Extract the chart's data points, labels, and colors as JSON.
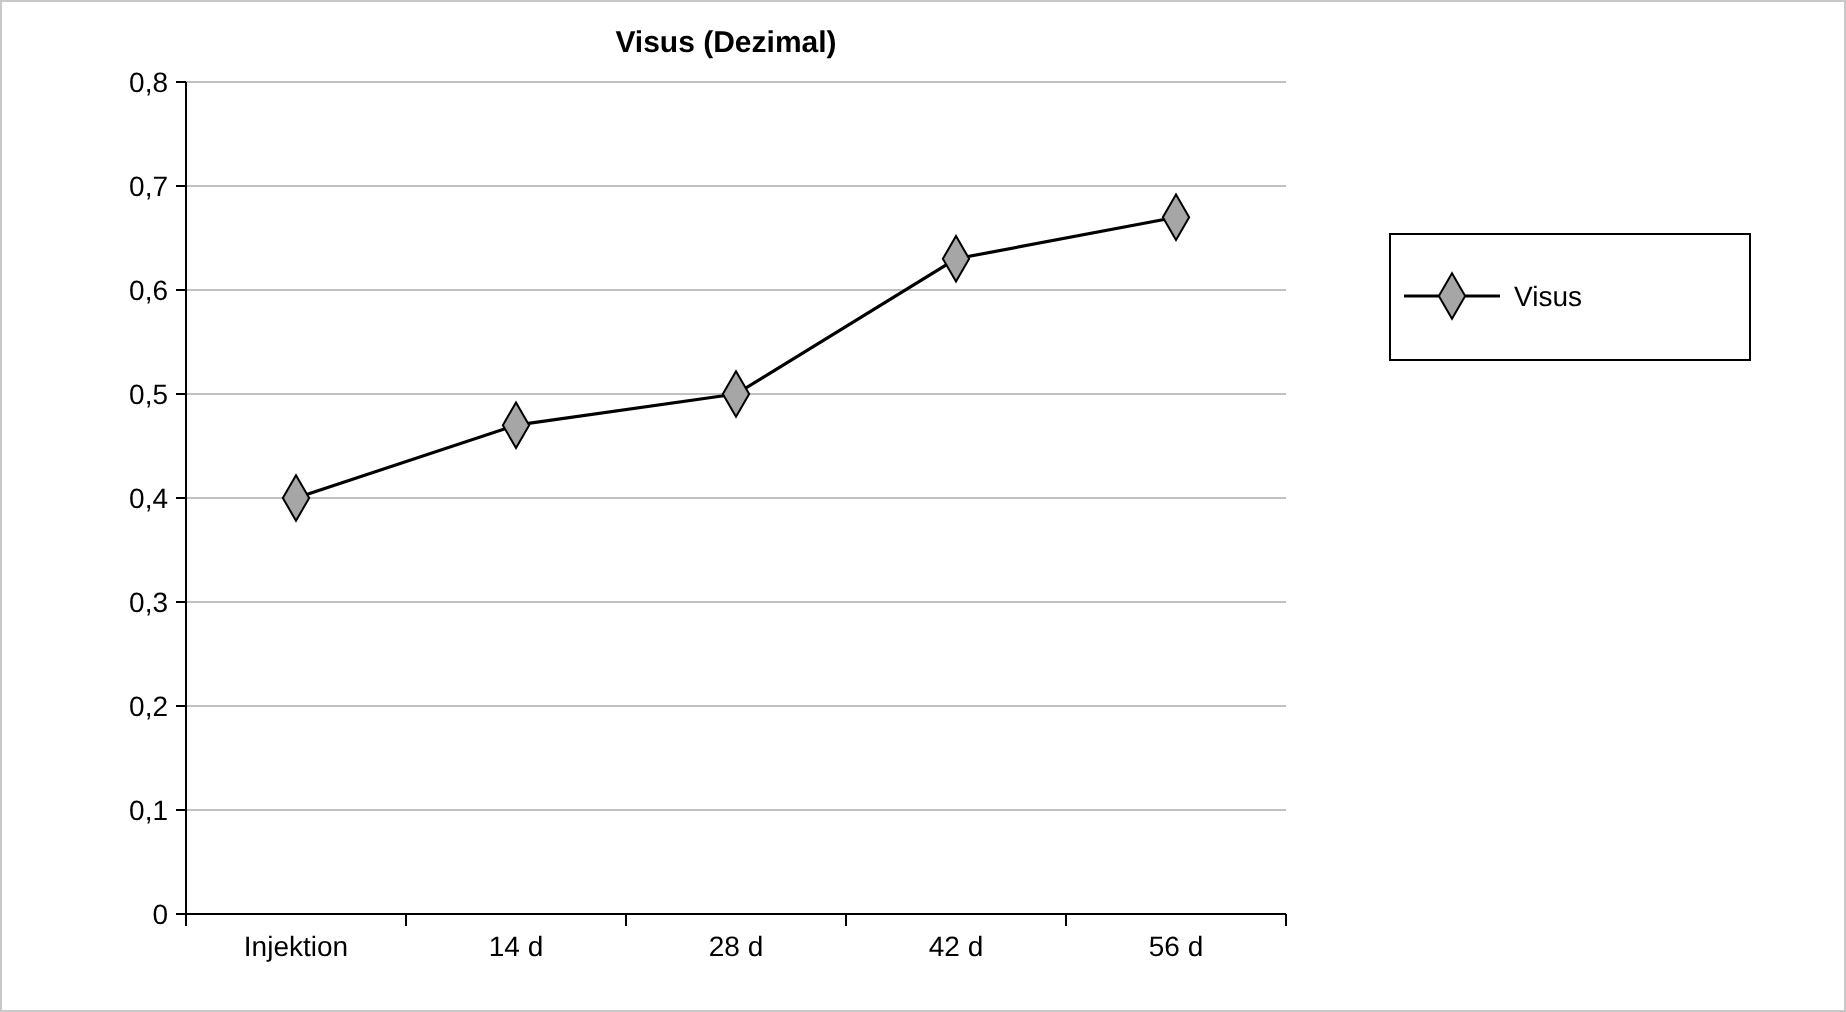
{
  "chart_data": {
    "type": "line",
    "title": "Visus (Dezimal)",
    "categories": [
      "Injektion",
      "14 d",
      "28 d",
      "42 d",
      "56 d"
    ],
    "series": [
      {
        "name": "Visus",
        "color": "#000000",
        "values": [
          0.4,
          0.47,
          0.5,
          0.63,
          0.67
        ]
      }
    ],
    "ylim": [
      0,
      0.8
    ],
    "yticks": [
      {
        "value": 0,
        "label": "0"
      },
      {
        "value": 0.1,
        "label": "0,1"
      },
      {
        "value": 0.2,
        "label": "0,2"
      },
      {
        "value": 0.3,
        "label": "0,3"
      },
      {
        "value": 0.4,
        "label": "0,4"
      },
      {
        "value": 0.5,
        "label": "0,5"
      },
      {
        "value": 0.6,
        "label": "0,6"
      },
      {
        "value": 0.7,
        "label": "0,7"
      },
      {
        "value": 0.8,
        "label": "0,8"
      }
    ],
    "grid": "y",
    "legend": "right",
    "marker": "diamond",
    "line_style": "solid"
  }
}
